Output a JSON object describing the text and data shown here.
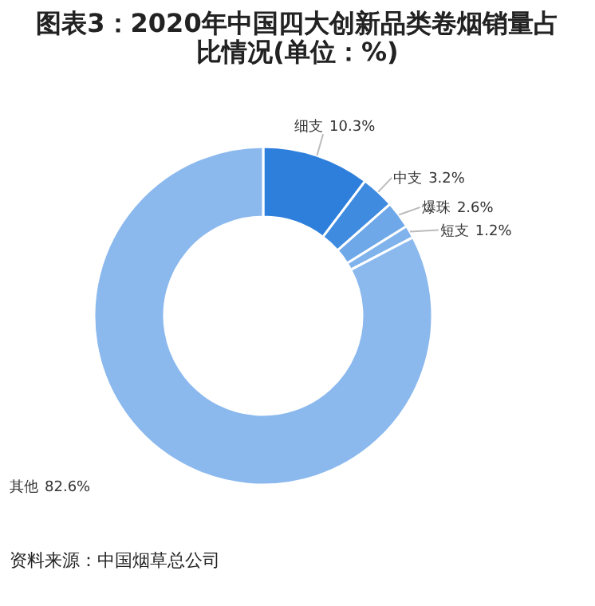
{
  "chart_data": {
    "type": "donut",
    "title": "图表3：2020年中国四大创新品类卷烟销量占比情况(单位：%)",
    "categories": [
      "细支",
      "中支",
      "爆珠",
      "短支",
      "其他"
    ],
    "values": [
      10.3,
      3.2,
      2.6,
      1.2,
      82.6
    ],
    "colors": [
      "#2e7fdc",
      "#3f8be0",
      "#6ea8e9",
      "#80b3ec",
      "#8bb9ee"
    ],
    "value_labels": [
      "10.3%",
      "3.2%",
      "2.6%",
      "1.2%",
      "82.6%"
    ],
    "annotations": [
      "资料来源：中国烟草总公司"
    ]
  }
}
